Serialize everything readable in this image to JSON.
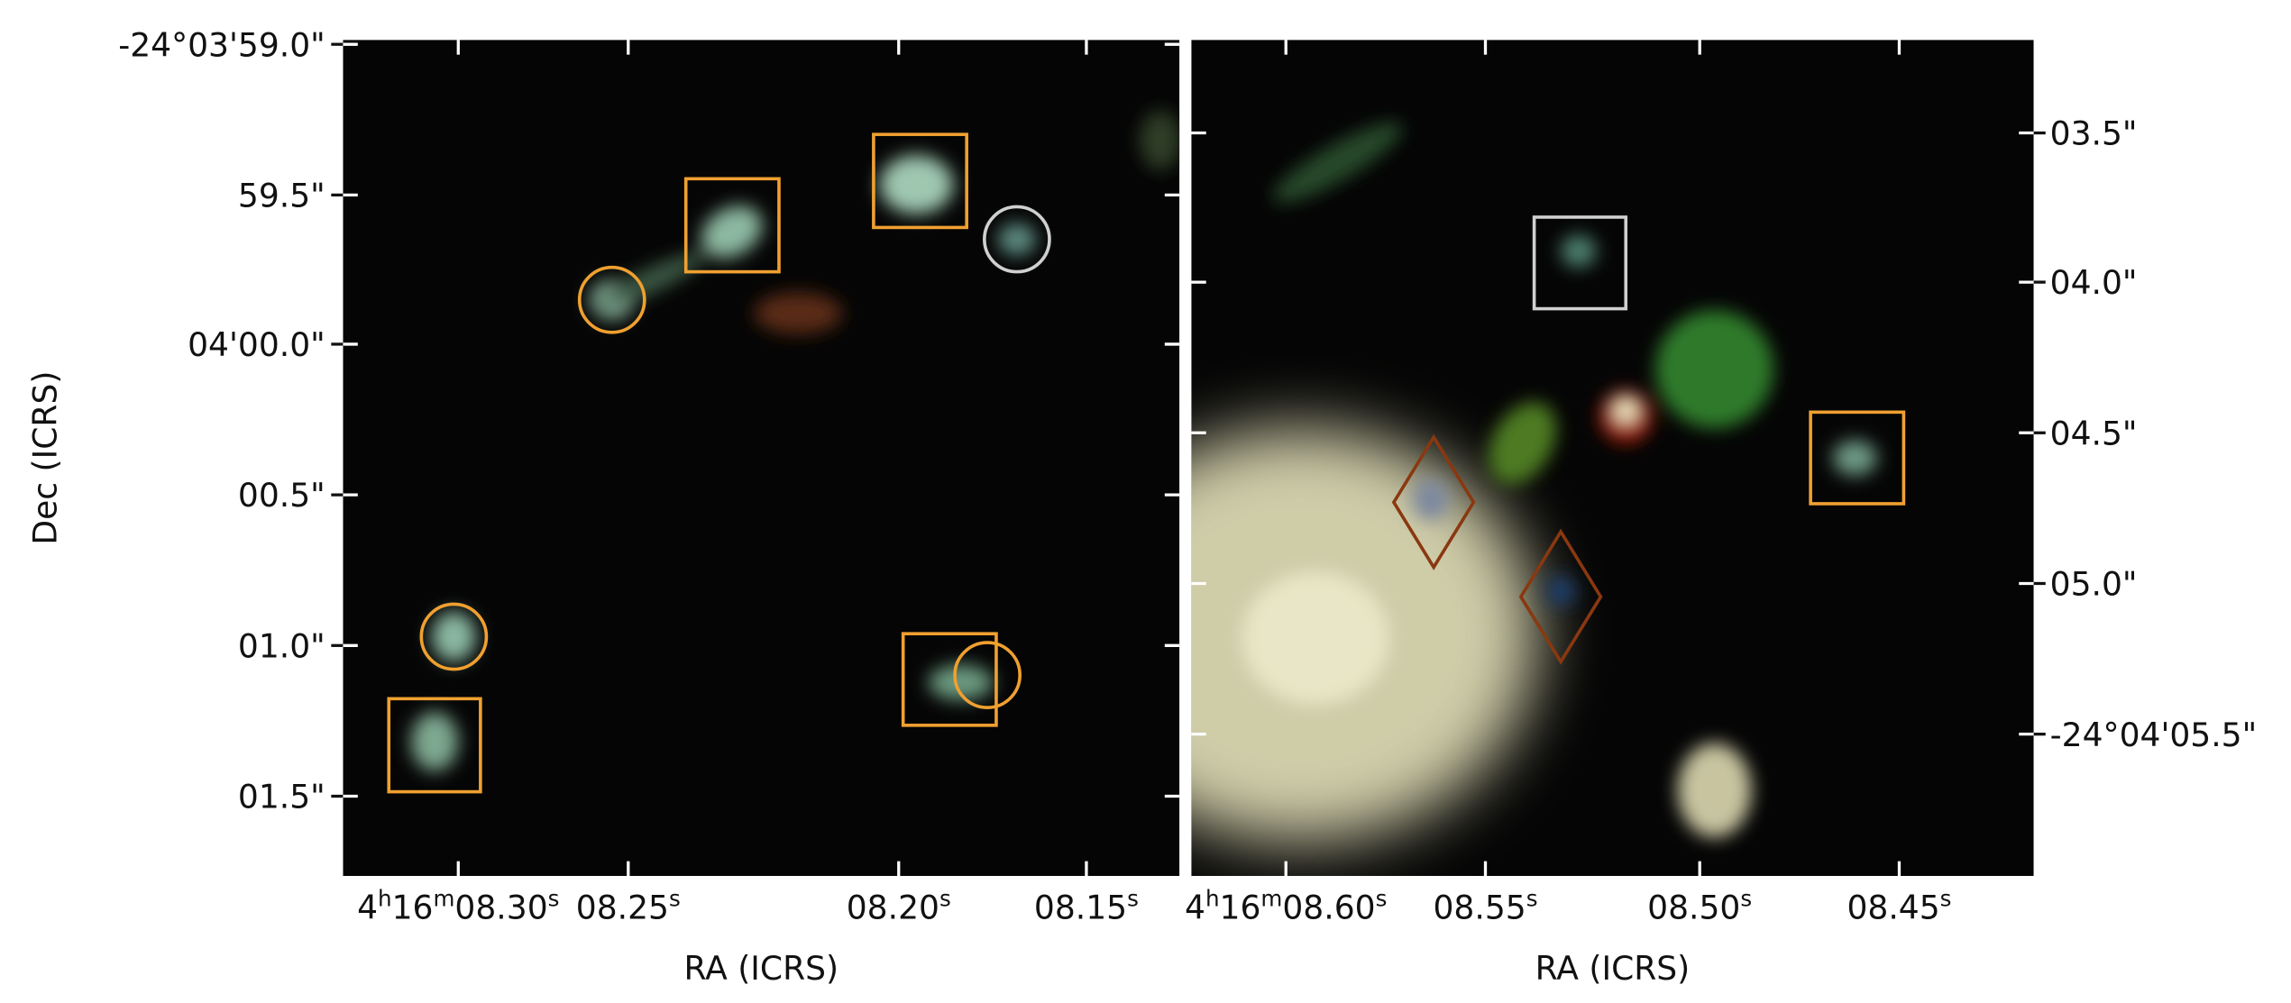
{
  "y_label": "Dec (ICRS)",
  "panels": [
    {
      "x_label": "RA (ICRS)",
      "x_ticks": [
        [
          "4",
          "h",
          "16",
          "m",
          "08.30",
          "s"
        ],
        [
          "08.25",
          "s"
        ],
        [
          "08.20",
          "s"
        ],
        [
          "08.15",
          "s"
        ]
      ],
      "y_ticks": [
        "-24°03'59.0\"",
        "59.5\"",
        "04'00.0\"",
        "00.5\"",
        "01.0\"",
        "01.5\""
      ]
    },
    {
      "x_label": "RA (ICRS)",
      "x_ticks": [
        [
          "4",
          "h",
          "16",
          "m",
          "08.60",
          "s"
        ],
        [
          "08.55",
          "s"
        ],
        [
          "08.50",
          "s"
        ],
        [
          "08.45",
          "s"
        ]
      ],
      "y_ticks": [
        "03.5\"",
        "04.0\"",
        "04.5\"",
        "05.0\"",
        "-24°04'05.5\""
      ]
    }
  ]
}
